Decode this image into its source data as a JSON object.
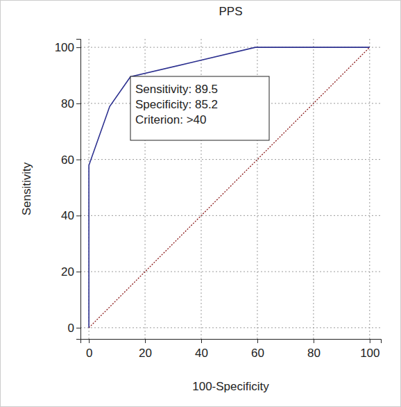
{
  "chart_data": {
    "type": "line",
    "title": "PPS",
    "x_label": "100-Specificity",
    "y_label": "Sensitivity",
    "series": [
      {
        "x": [
          0,
          0,
          7.4,
          14.8,
          37,
          59.3,
          100
        ],
        "values": [
          0,
          57.9,
          78.9,
          89.5,
          94.7,
          100,
          100
        ],
        "color": "#2b2f8f",
        "line_style": "solid"
      },
      {
        "x": [
          0,
          100
        ],
        "values": [
          0,
          100
        ],
        "color": "#8b1a1a",
        "line_style": "dotted"
      }
    ],
    "xlim": [
      -3,
      104
    ],
    "ylim": [
      -4,
      103
    ],
    "xticks": [
      0,
      20,
      40,
      60,
      80,
      100
    ],
    "yticks": [
      0,
      20,
      40,
      60,
      80,
      100
    ],
    "grid": true,
    "annotations": [
      "Sensitivity: 89.5",
      "Specificity: 85.2",
      "Criterion: >40"
    ]
  }
}
